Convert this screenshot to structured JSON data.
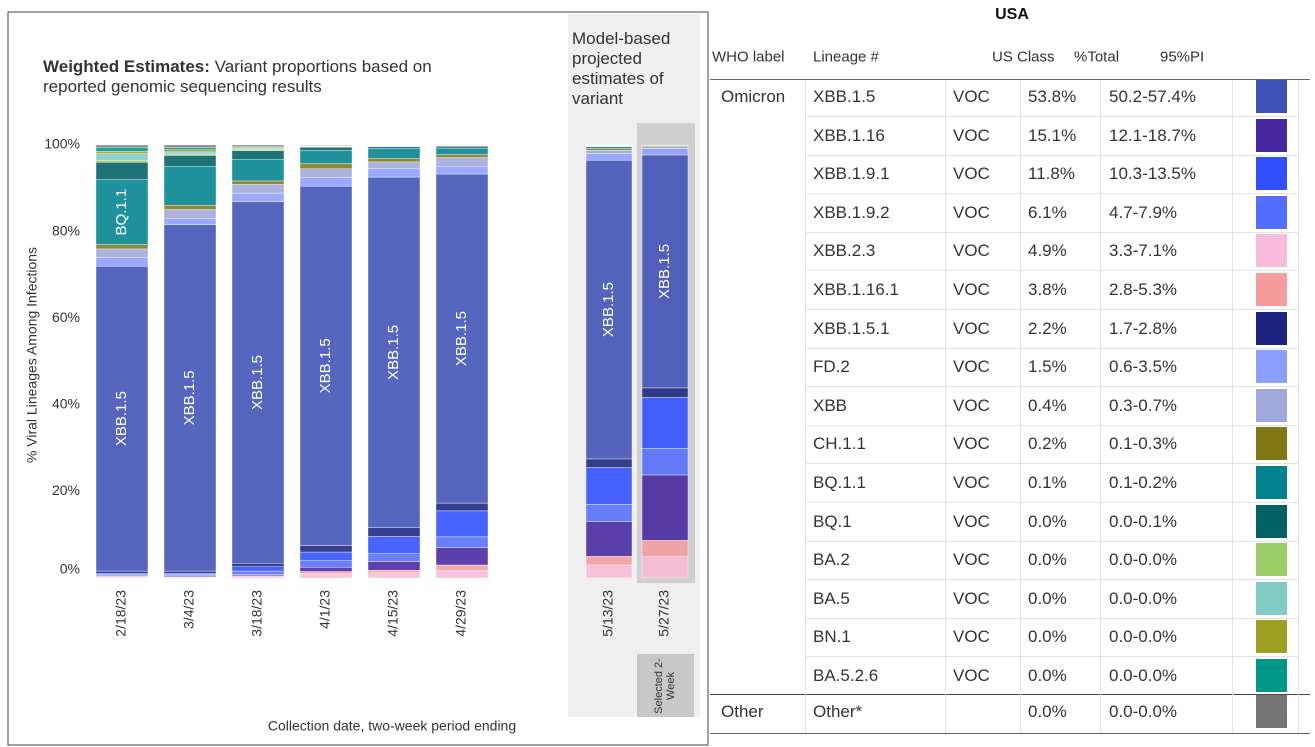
{
  "chart_data": [
    {
      "type": "bar",
      "stacked": true,
      "title_bold": "Weighted Estimates:",
      "title": "Variant proportions based on reported genomic sequencing results",
      "y_label": "% Viral Lineages Among Infections",
      "x_label": "Collection date, two-week period ending",
      "categories": [
        "2/18/23",
        "3/4/23",
        "3/18/23",
        "4/1/23",
        "4/15/23",
        "4/29/23"
      ],
      "ylim": [
        0,
        100
      ],
      "yticks": [
        {
          "value": 0,
          "label": "0%"
        },
        {
          "value": 20,
          "label": "20%"
        },
        {
          "value": 40,
          "label": "40%"
        },
        {
          "value": 60,
          "label": "60%"
        },
        {
          "value": 80,
          "label": "80%"
        },
        {
          "value": 100,
          "label": "100%"
        }
      ],
      "series": [
        {
          "name": "XBB.2.3",
          "color": "#f8bbd9",
          "values": [
            0.2,
            0.2,
            0.3,
            1,
            1.2,
            1.8
          ]
        },
        {
          "name": "XBB.1.16.1",
          "color": "#f59d9d",
          "values": [
            0.2,
            0.1,
            0.2,
            0.5,
            0.6,
            1.2
          ]
        },
        {
          "name": "XBB.1.16",
          "color": "#4527a0",
          "values": [
            0.2,
            0.2,
            0.3,
            1,
            2,
            4
          ]
        },
        {
          "name": "XBB.1.9.2",
          "color": "#536dfe",
          "values": [
            0.2,
            0.3,
            0.8,
            1.5,
            1.8,
            2.5
          ]
        },
        {
          "name": "XBB.1.9.1",
          "color": "#304ffe",
          "values": [
            0.3,
            0.3,
            1,
            2,
            4,
            6
          ]
        },
        {
          "name": "XBB.1.5.1",
          "color": "#1a237e",
          "values": [
            0.5,
            0.5,
            0.8,
            1.5,
            2,
            1.8
          ]
        },
        {
          "name": "XBB.1.5",
          "color": "#3f51b5",
          "labeled": true,
          "values": [
            70.4,
            80,
            83.5,
            83,
            81,
            76
          ]
        },
        {
          "name": "FD.2",
          "color": "#8c9eff",
          "values": [
            2,
            1.5,
            2,
            2,
            2,
            1.8
          ]
        },
        {
          "name": "XBB",
          "color": "#9fa8da",
          "values": [
            2,
            2,
            2,
            2,
            1.5,
            2
          ]
        },
        {
          "name": "CH.1.1",
          "color": "#827717",
          "values": [
            1,
            1,
            0.8,
            1.2,
            0.8,
            0.7
          ]
        },
        {
          "name": "BQ.1.1",
          "color": "#00838f",
          "labeled": true,
          "values": [
            15,
            9,
            5,
            3,
            2.3,
            1.5
          ]
        },
        {
          "name": "BQ.1",
          "color": "#006064",
          "values": [
            4,
            2.5,
            2,
            0.8,
            0.4,
            0.4
          ]
        },
        {
          "name": "BA.2",
          "color": "#9ccc65",
          "values": [
            0.5,
            0.3,
            0.3,
            0.1,
            0.1,
            0.1
          ]
        },
        {
          "name": "BA.5",
          "color": "#80cbc4",
          "values": [
            1.5,
            0.5,
            0.2,
            0.1,
            0.1,
            0.1
          ]
        },
        {
          "name": "BN.1",
          "color": "#9e9d24",
          "values": [
            0.5,
            0.5,
            0.3,
            0.2,
            0.1,
            0.1
          ]
        },
        {
          "name": "BA.5.2.6",
          "color": "#009688",
          "values": [
            1,
            0.5,
            0.2,
            0.1,
            0.1,
            0.1
          ]
        },
        {
          "name": "Other",
          "color": "#757575",
          "values": [
            0.5,
            0.6,
            0.3,
            0.1,
            0.1,
            0.1
          ]
        }
      ]
    },
    {
      "type": "bar",
      "stacked": true,
      "title": "Model-based projected estimates of variant",
      "note": "Selected 2-Week",
      "highlight": "5/27/23",
      "categories": [
        "5/13/23",
        "5/27/23"
      ],
      "ylim": [
        0,
        100
      ],
      "series": [
        {
          "name": "XBB.2.3",
          "color": "#f8bbd9",
          "values": [
            3,
            4.9
          ]
        },
        {
          "name": "XBB.1.16.1",
          "color": "#f59d9d",
          "values": [
            2,
            3.8
          ]
        },
        {
          "name": "XBB.1.16",
          "color": "#4527a0",
          "values": [
            8,
            15.1
          ]
        },
        {
          "name": "XBB.1.9.2",
          "color": "#536dfe",
          "values": [
            4,
            6.1
          ]
        },
        {
          "name": "XBB.1.9.1",
          "color": "#304ffe",
          "values": [
            8.5,
            11.8
          ]
        },
        {
          "name": "XBB.1.5.1",
          "color": "#1a237e",
          "values": [
            2,
            2.2
          ]
        },
        {
          "name": "XBB.1.5",
          "color": "#3f51b5",
          "labeled": true,
          "values": [
            69,
            53.8
          ]
        },
        {
          "name": "FD.2",
          "color": "#8c9eff",
          "values": [
            1.5,
            1.5
          ]
        },
        {
          "name": "XBB",
          "color": "#9fa8da",
          "values": [
            0.8,
            0.4
          ]
        },
        {
          "name": "CH.1.1",
          "color": "#827717",
          "values": [
            0.4,
            0.2
          ]
        },
        {
          "name": "BQ.1.1",
          "color": "#00838f",
          "values": [
            0.4,
            0.1
          ]
        },
        {
          "name": "BQ.1",
          "color": "#006064",
          "values": [
            0.1,
            0
          ]
        },
        {
          "name": "BA.2",
          "color": "#9ccc65",
          "values": [
            0.1,
            0
          ]
        },
        {
          "name": "BA.5",
          "color": "#80cbc4",
          "values": [
            0.1,
            0
          ]
        },
        {
          "name": "BN.1",
          "color": "#9e9d24",
          "values": [
            0.1,
            0
          ]
        },
        {
          "name": "BA.5.2.6",
          "color": "#009688",
          "values": [
            0.1,
            0
          ]
        },
        {
          "name": "Other",
          "color": "#757575",
          "values": [
            0.1,
            0
          ]
        }
      ]
    }
  ],
  "table": {
    "title": "USA",
    "columns": [
      "WHO label",
      "Lineage #",
      "US Class",
      "%Total",
      "95%PI"
    ],
    "groups": [
      {
        "label": "Omicron",
        "rows": [
          {
            "lineage": "XBB.1.5",
            "us_class": "VOC",
            "total": "53.8%",
            "pi": "50.2-57.4%",
            "color": "#3f51b5"
          },
          {
            "lineage": "XBB.1.16",
            "us_class": "VOC",
            "total": "15.1%",
            "pi": "12.1-18.7%",
            "color": "#4527a0"
          },
          {
            "lineage": "XBB.1.9.1",
            "us_class": "VOC",
            "total": "11.8%",
            "pi": "10.3-13.5%",
            "color": "#304ffe"
          },
          {
            "lineage": "XBB.1.9.2",
            "us_class": "VOC",
            "total": "6.1%",
            "pi": "4.7-7.9%",
            "color": "#536dfe"
          },
          {
            "lineage": "XBB.2.3",
            "us_class": "VOC",
            "total": "4.9%",
            "pi": "3.3-7.1%",
            "color": "#f8bbd9"
          },
          {
            "lineage": "XBB.1.16.1",
            "us_class": "VOC",
            "total": "3.8%",
            "pi": "2.8-5.3%",
            "color": "#f59d9d"
          },
          {
            "lineage": "XBB.1.5.1",
            "us_class": "VOC",
            "total": "2.2%",
            "pi": "1.7-2.8%",
            "color": "#1a237e"
          },
          {
            "lineage": "FD.2",
            "us_class": "VOC",
            "total": "1.5%",
            "pi": "0.6-3.5%",
            "color": "#8c9eff"
          },
          {
            "lineage": "XBB",
            "us_class": "VOC",
            "total": "0.4%",
            "pi": "0.3-0.7%",
            "color": "#9fa8da"
          },
          {
            "lineage": "CH.1.1",
            "us_class": "VOC",
            "total": "0.2%",
            "pi": "0.1-0.3%",
            "color": "#827717"
          },
          {
            "lineage": "BQ.1.1",
            "us_class": "VOC",
            "total": "0.1%",
            "pi": "0.1-0.2%",
            "color": "#00838f"
          },
          {
            "lineage": "BQ.1",
            "us_class": "VOC",
            "total": "0.0%",
            "pi": "0.0-0.1%",
            "color": "#006064"
          },
          {
            "lineage": "BA.2",
            "us_class": "VOC",
            "total": "0.0%",
            "pi": "0.0-0.0%",
            "color": "#9ccc65"
          },
          {
            "lineage": "BA.5",
            "us_class": "VOC",
            "total": "0.0%",
            "pi": "0.0-0.0%",
            "color": "#80cbc4"
          },
          {
            "lineage": "BN.1",
            "us_class": "VOC",
            "total": "0.0%",
            "pi": "0.0-0.0%",
            "color": "#9e9d24"
          },
          {
            "lineage": "BA.5.2.6",
            "us_class": "VOC",
            "total": "0.0%",
            "pi": "0.0-0.0%",
            "color": "#009688"
          }
        ]
      },
      {
        "label": "Other",
        "rows": [
          {
            "lineage": "Other*",
            "total": "0.0%",
            "pi": "0.0-0.0%",
            "color": "#757575"
          }
        ]
      }
    ]
  }
}
